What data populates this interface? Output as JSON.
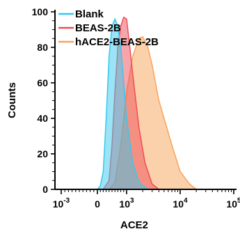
{
  "chart_data": {
    "type": "area",
    "xlabel": "ACE2",
    "ylabel": "Counts",
    "ylim": [
      0,
      100
    ],
    "x_scale": "biexponential",
    "x_tick_labels": [
      {
        "base": "10",
        "exp": "-3"
      },
      {
        "base": "0",
        "exp": ""
      },
      {
        "base": "10",
        "exp": "3"
      },
      {
        "base": "10",
        "exp": "4"
      },
      {
        "base": "10",
        "exp": "5"
      }
    ],
    "y_tick_labels": [
      "0",
      "20",
      "40",
      "60",
      "80",
      "100"
    ],
    "legend_position": "top-left",
    "series": [
      {
        "name": "Blank",
        "color": "#37c8ee",
        "points": [
          [
            -300,
            0
          ],
          [
            0,
            0
          ],
          [
            100,
            2
          ],
          [
            200,
            10
          ],
          [
            300,
            40
          ],
          [
            400,
            75
          ],
          [
            500,
            92
          ],
          [
            600,
            96
          ],
          [
            700,
            92
          ],
          [
            800,
            80
          ],
          [
            900,
            60
          ],
          [
            1000,
            40
          ],
          [
            1300,
            15
          ],
          [
            1700,
            4
          ],
          [
            2500,
            0
          ]
        ]
      },
      {
        "name": "BEAS-2B",
        "color": "#ee4d57",
        "points": [
          [
            -300,
            0
          ],
          [
            200,
            0
          ],
          [
            400,
            5
          ],
          [
            500,
            25
          ],
          [
            600,
            55
          ],
          [
            700,
            80
          ],
          [
            800,
            92
          ],
          [
            900,
            97
          ],
          [
            1000,
            96
          ],
          [
            1100,
            85
          ],
          [
            1300,
            65
          ],
          [
            1700,
            35
          ],
          [
            2200,
            15
          ],
          [
            3000,
            3
          ],
          [
            4000,
            0
          ]
        ]
      },
      {
        "name": "hACE2-BEAS-2B",
        "color": "#f8a35a",
        "points": [
          [
            -300,
            0
          ],
          [
            400,
            0
          ],
          [
            600,
            4
          ],
          [
            800,
            25
          ],
          [
            1000,
            55
          ],
          [
            1300,
            75
          ],
          [
            1700,
            85
          ],
          [
            2000,
            86
          ],
          [
            2500,
            80
          ],
          [
            3000,
            70
          ],
          [
            4000,
            50
          ],
          [
            5000,
            40
          ],
          [
            7000,
            25
          ],
          [
            10000,
            10
          ],
          [
            15000,
            3
          ],
          [
            20000,
            0
          ]
        ]
      }
    ]
  }
}
